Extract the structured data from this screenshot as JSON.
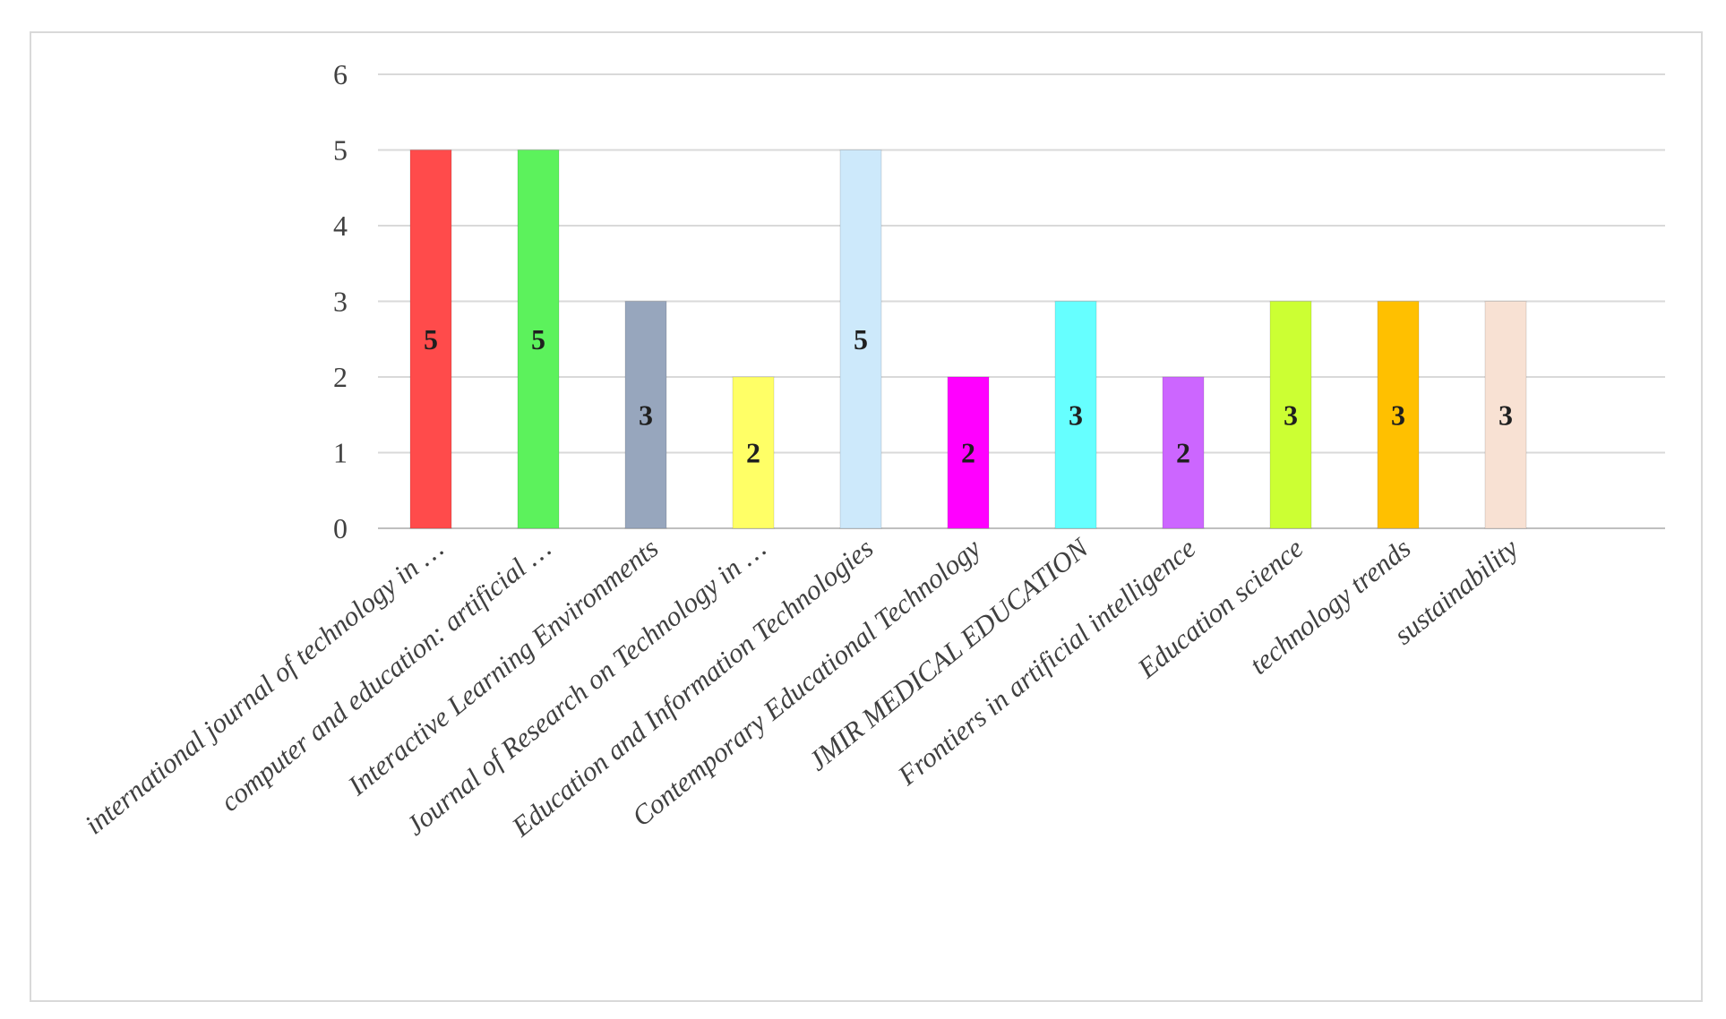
{
  "chart_data": {
    "type": "bar",
    "title": "",
    "xlabel": "",
    "ylabel": "",
    "ylim": [
      0,
      6
    ],
    "yticks": [
      "0",
      "1",
      "2",
      "3",
      "4",
      "5",
      "6"
    ],
    "grid": true,
    "legend": "none",
    "categories": [
      "international journal of technology in …",
      "computer and education: artificial …",
      "Interactive Learning Environments",
      "Journal of Research on Technology in …",
      "Education and Information Technologies",
      "Contemporary Educational Technology",
      "JMIR MEDICAL EDUCATION",
      "Frontiers in artificial intelligence",
      "Education science",
      "technology trends",
      "sustainability"
    ],
    "values": [
      5,
      5,
      3,
      2,
      5,
      2,
      3,
      2,
      3,
      3,
      3
    ],
    "data_labels": [
      "5",
      "5",
      "3",
      "2",
      "5",
      "2",
      "3",
      "2",
      "3",
      "3",
      "3"
    ],
    "colors": [
      "#ff4b4b",
      "#5cf25c",
      "#97a6bd",
      "#ffff66",
      "#cde9fb",
      "#ff00ff",
      "#66ffff",
      "#cc66ff",
      "#ccff33",
      "#ffc000",
      "#f8e1d3"
    ]
  }
}
